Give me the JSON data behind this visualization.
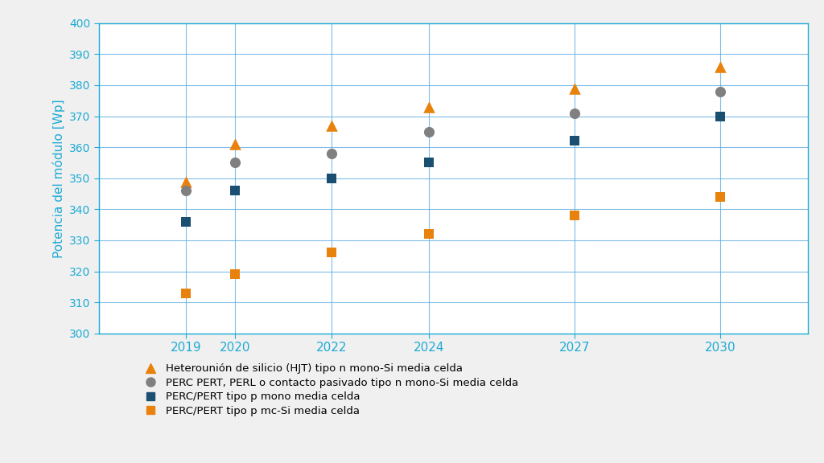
{
  "years": [
    2019,
    2020,
    2022,
    2024,
    2027,
    2030
  ],
  "hjt": [
    349,
    361,
    367,
    373,
    379,
    386
  ],
  "perc_n": [
    346,
    355,
    358,
    365,
    371,
    378
  ],
  "perc_p_mono": [
    336,
    346,
    350,
    355,
    362,
    370
  ],
  "perc_p_mc": [
    313,
    319,
    326,
    332,
    338,
    344
  ],
  "color_hjt": "#E8820C",
  "color_perc_n": "#808080",
  "color_perc_p_mono": "#1B4F72",
  "color_perc_p_mc": "#E8820C",
  "ylabel": "Potencia del módulo [Wp]",
  "ylim_min": 300,
  "ylim_max": 400,
  "yticks": [
    300,
    310,
    320,
    330,
    340,
    350,
    360,
    370,
    380,
    390,
    400
  ],
  "legend_hjt": "Heterounión de silicio (HJT) tipo n mono-Si media celda",
  "legend_perc_n": "PERC PERT, PERL o contacto pasivado tipo n mono-Si media celda",
  "legend_perc_p_mono": "PERC/PERT tipo p mono media celda",
  "legend_perc_p_mc": "PERC/PERT tipo p mc-Si media celda",
  "grid_color": "#5DADE2",
  "axis_color": "#1EABD4",
  "tick_label_color": "#1EABD4",
  "ylabel_color": "#1EABD4",
  "bg_color": "#FFFFFF",
  "outer_bg_color": "#F0F0F0",
  "marker_size_tri": 110,
  "marker_size_circle": 90,
  "marker_size_square": 75
}
